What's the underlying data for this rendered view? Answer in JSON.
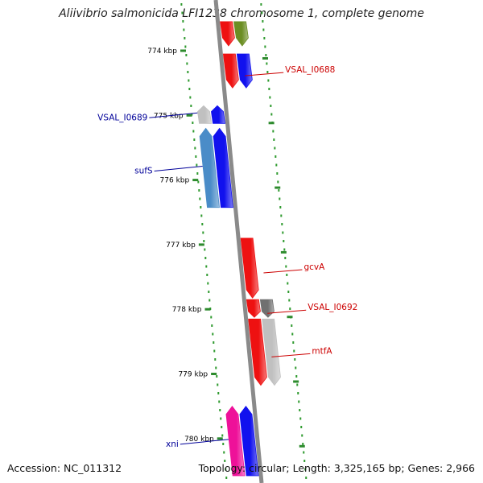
{
  "title": "Aliivibrio salmonicida LFI1238 chromosome 1, complete genome",
  "footer": {
    "accession": "Accession: NC_011312",
    "topology": "Topology: circular; Length: 3,325,165 bp; Genes: 2,966"
  },
  "colors": {
    "backbone": "#8a8a8a",
    "tick": "#2e8b2e",
    "dots": "#2e9a2e",
    "label_red": "#cc0000",
    "label_blue": "#000099"
  },
  "ticks": [
    {
      "label": "774 kbp",
      "kbp": 774
    },
    {
      "label": "775 kbp",
      "kbp": 775
    },
    {
      "label": "776 kbp",
      "kbp": 776
    },
    {
      "label": "777 kbp",
      "kbp": 777
    },
    {
      "label": "778 kbp",
      "kbp": 778
    },
    {
      "label": "779 kbp",
      "kbp": 779
    },
    {
      "label": "780 kbp",
      "kbp": 780
    }
  ],
  "genes": [
    {
      "name": "",
      "strand": "+",
      "lane": 1,
      "start": 773.55,
      "end": 773.95,
      "color": "#ee1111"
    },
    {
      "name": "",
      "strand": "+",
      "lane": 2,
      "start": 773.55,
      "end": 773.95,
      "color": "#6b8e23"
    },
    {
      "name": "VSAL_I0688",
      "strand": "+",
      "lane": 1,
      "start": 774.05,
      "end": 774.6,
      "color": "#ee1111"
    },
    {
      "name": "",
      "strand": "+",
      "lane": 2,
      "start": 774.05,
      "end": 774.6,
      "color": "#1111ee"
    },
    {
      "name": "VSAL_I0689",
      "strand": "-",
      "lane": 2,
      "start": 774.85,
      "end": 775.15,
      "color": "#c0c0c0"
    },
    {
      "name": "",
      "strand": "-",
      "lane": 1,
      "start": 774.85,
      "end": 775.15,
      "color": "#1111ee"
    },
    {
      "name": "sufS",
      "strand": "-",
      "lane": 2,
      "start": 775.2,
      "end": 776.45,
      "color": "#4a8cc8"
    },
    {
      "name": "",
      "strand": "-",
      "lane": 1,
      "start": 775.2,
      "end": 776.45,
      "color": "#1111ee"
    },
    {
      "name": "gcvA",
      "strand": "+",
      "lane": 1,
      "start": 776.9,
      "end": 777.85,
      "color": "#ee1111"
    },
    {
      "name": "VSAL_I0692",
      "strand": "+",
      "lane": 1,
      "start": 777.85,
      "end": 778.15,
      "color": "#ee1111"
    },
    {
      "name": "",
      "strand": "+",
      "lane": 2,
      "start": 777.85,
      "end": 778.15,
      "color": "#707070"
    },
    {
      "name": "mtfA",
      "strand": "+",
      "lane": 1,
      "start": 778.15,
      "end": 779.2,
      "color": "#ee1111"
    },
    {
      "name": "",
      "strand": "+",
      "lane": 2,
      "start": 778.15,
      "end": 779.2,
      "color": "#c0c0c0"
    },
    {
      "name": "xni",
      "strand": "-",
      "lane": 2,
      "start": 779.5,
      "end": 780.6,
      "color": "#ee1199"
    },
    {
      "name": "",
      "strand": "-",
      "lane": 1,
      "start": 779.5,
      "end": 780.6,
      "color": "#1111ee"
    }
  ]
}
